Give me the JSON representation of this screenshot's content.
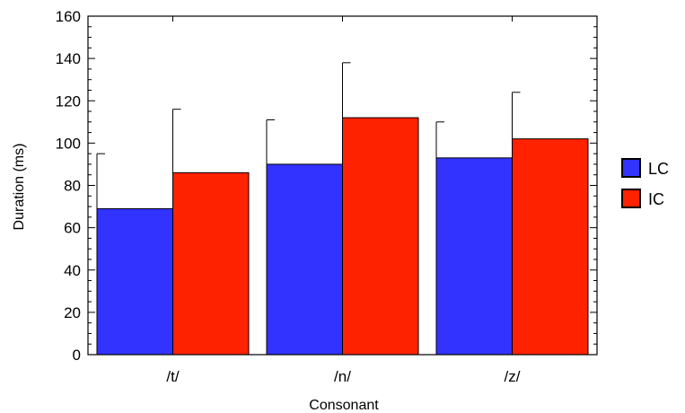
{
  "chart_data": {
    "type": "bar",
    "title": "",
    "xlabel": "Consonant",
    "ylabel": "Duration (ms)",
    "categories": [
      "/t/",
      "/n/",
      "/z/"
    ],
    "ylim": [
      0,
      160
    ],
    "yticks": [
      0,
      20,
      40,
      60,
      80,
      100,
      120,
      140,
      160
    ],
    "grid": false,
    "legend_position": "right",
    "series": [
      {
        "name": "LC",
        "color": "#3333ff",
        "values": [
          69,
          90,
          93
        ],
        "error_upper": [
          95,
          111,
          110
        ]
      },
      {
        "name": "IC",
        "color": "#ff2200",
        "values": [
          86,
          112,
          102
        ],
        "error_upper": [
          116,
          138,
          124
        ]
      }
    ]
  }
}
